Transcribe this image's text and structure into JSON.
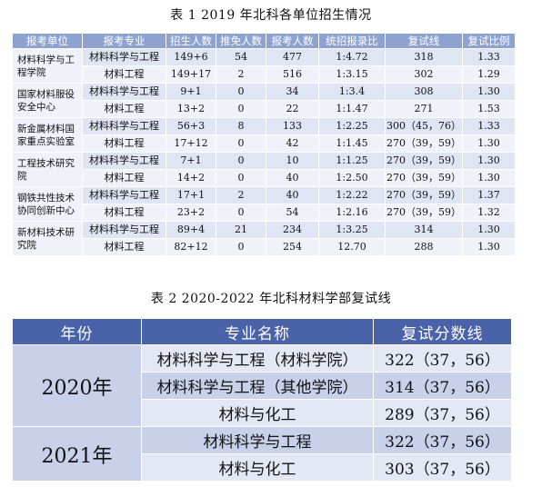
{
  "table1": {
    "caption": "表 1    2019 年北科各单位招生情况",
    "headers": [
      "报考单位",
      "报考专业",
      "招生人数",
      "推免人数",
      "报考人数",
      "统招报录比",
      "复试线",
      "复试比例"
    ],
    "groups": [
      {
        "unit": "材料科学与工程学院",
        "rows": [
          [
            "材料科学与工程",
            "149+6",
            "54",
            "477",
            "1:4.72",
            "318",
            "1.33"
          ],
          [
            "材料工程",
            "149+17",
            "2",
            "516",
            "1:3.15",
            "302",
            "1.29"
          ]
        ]
      },
      {
        "unit": "国家材料服役安全中心",
        "rows": [
          [
            "材料科学与工程",
            "9+1",
            "0",
            "34",
            "1:3.4",
            "308",
            "1.30"
          ],
          [
            "材料工程",
            "13+2",
            "0",
            "22",
            "1:1.47",
            "271",
            "1.53"
          ]
        ]
      },
      {
        "unit": "新金属材料国家重点实验室",
        "rows": [
          [
            "材料科学与工程",
            "56+3",
            "8",
            "133",
            "1:2.25",
            "300（45，76）",
            "1.33"
          ],
          [
            "材料工程",
            "17+12",
            "0",
            "42",
            "1:1.45",
            "270（39，59）",
            "1.30"
          ]
        ]
      },
      {
        "unit": "工程技术研究院",
        "rows": [
          [
            "材料科学与工程",
            "7+1",
            "0",
            "10",
            "1:1.25",
            "270（39，59）",
            "1.30"
          ],
          [
            "材料工程",
            "14+2",
            "0",
            "40",
            "1:2.50",
            "270（39，59）",
            "1.30"
          ]
        ]
      },
      {
        "unit": "钢铁共性技术协同创新中心",
        "rows": [
          [
            "材料科学与工程",
            "17+1",
            "2",
            "40",
            "1:2.22",
            "270（39，59）",
            "1.37"
          ],
          [
            "材料工程",
            "23+2",
            "0",
            "54",
            "1:2.16",
            "270（39，59）",
            "1.32"
          ]
        ]
      },
      {
        "unit": "新材料技术研究院",
        "rows": [
          [
            "材料科学与工程",
            "89+4",
            "21",
            "234",
            "1:3.25",
            "314",
            "1.30"
          ],
          [
            "材料工程",
            "82+12",
            "0",
            "254",
            "12.70",
            "288",
            "1.30"
          ]
        ]
      }
    ]
  },
  "table2": {
    "caption": "表 2    2020-2022 年北科材料学部复试线",
    "headers": [
      "年份",
      "专业名称",
      "复试分数线"
    ],
    "years": [
      {
        "year": "2020年",
        "rows": [
          [
            "材料科学与工程（材料学院）",
            "322（37，56）"
          ],
          [
            "材料科学与工程（其他学院）",
            "314（37，56）"
          ],
          [
            "材料与化工",
            "289（37，56）"
          ]
        ]
      },
      {
        "year": "2021年",
        "rows": [
          [
            "材料科学与工程",
            "322（37，56）"
          ],
          [
            "材料与化工",
            "303（37，56）"
          ]
        ]
      }
    ]
  }
}
